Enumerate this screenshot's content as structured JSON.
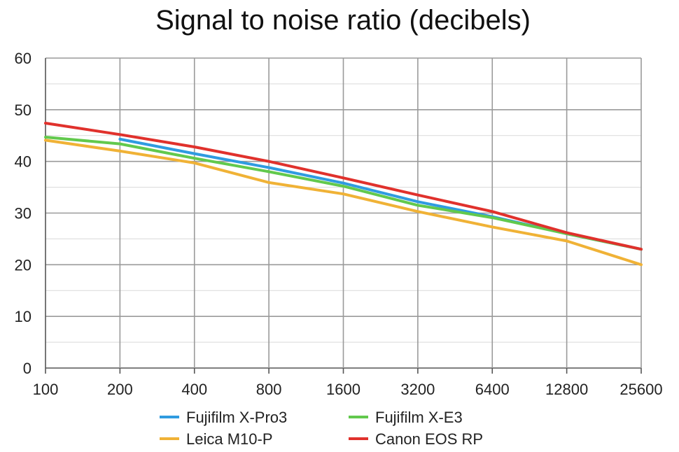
{
  "chart_data": {
    "type": "line",
    "title": "Signal to noise ratio (decibels)",
    "xlabel": "",
    "ylabel": "",
    "categories": [
      "100",
      "200",
      "400",
      "800",
      "1600",
      "3200",
      "6400",
      "12800",
      "25600"
    ],
    "y_ticks": [
      "0",
      "10",
      "20",
      "30",
      "40",
      "50",
      "60"
    ],
    "ylim": [
      0,
      60
    ],
    "grid": true,
    "legend_position": "bottom",
    "series": [
      {
        "name": "Fujifilm X-Pro3",
        "color": "#2f9be0",
        "values": [
          null,
          44.3,
          41.5,
          38.8,
          35.8,
          32.2,
          29.3,
          26.0,
          23.0
        ]
      },
      {
        "name": "Fujifilm X-E3",
        "color": "#62c94d",
        "values": [
          44.7,
          43.4,
          40.6,
          38.0,
          35.2,
          31.5,
          29.1,
          26.0,
          23.0
        ]
      },
      {
        "name": "Leica M10-P",
        "color": "#f0b236",
        "values": [
          44.1,
          42.0,
          39.7,
          35.9,
          33.7,
          30.3,
          27.3,
          24.6,
          20.0
        ]
      },
      {
        "name": "Canon EOS RP",
        "color": "#e0312c",
        "values": [
          47.4,
          45.2,
          42.8,
          40.0,
          36.8,
          33.5,
          30.3,
          26.2,
          23.0
        ]
      }
    ]
  }
}
